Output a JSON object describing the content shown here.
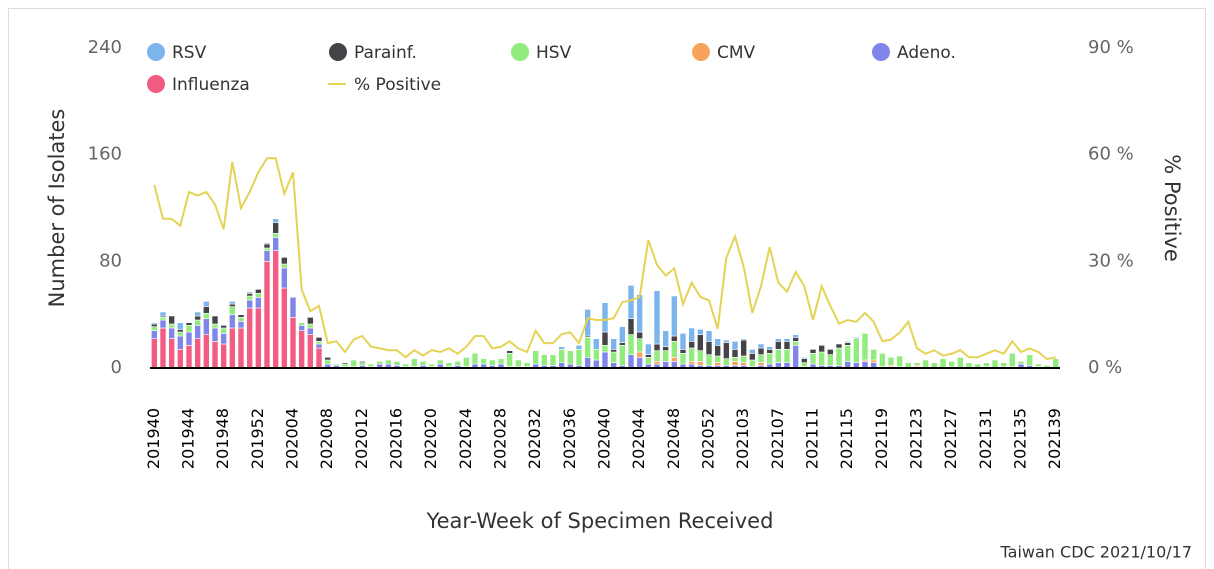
{
  "chart_data": {
    "type": "bar",
    "stacked": true,
    "y_label": "Number of Isolates",
    "y2_label": "% Positive",
    "x_label": "Year-Week of Specimen Received",
    "source": "Taiwan CDC 2021/10/17",
    "ylim": [
      0,
      240
    ],
    "yticks": [
      0,
      80,
      160,
      240
    ],
    "y2lim": [
      0,
      90
    ],
    "y2ticks": [
      {
        "value": 0,
        "label": "0 %"
      },
      {
        "value": 30,
        "label": "30 %"
      },
      {
        "value": 60,
        "label": "60 %"
      },
      {
        "value": 90,
        "label": "90 %"
      }
    ],
    "categories": [
      "201940",
      null,
      null,
      null,
      "201944",
      null,
      null,
      null,
      "201948",
      null,
      null,
      null,
      "201952",
      null,
      null,
      null,
      "202004",
      null,
      null,
      null,
      "202008",
      null,
      null,
      null,
      "202012",
      null,
      null,
      null,
      "202016",
      null,
      null,
      null,
      "202020",
      null,
      null,
      null,
      "202024",
      null,
      null,
      null,
      "202028",
      null,
      null,
      null,
      "202032",
      null,
      null,
      null,
      "202036",
      null,
      null,
      null,
      "202040",
      null,
      null,
      null,
      "202044",
      null,
      null,
      null,
      "202048",
      null,
      null,
      null,
      "202052",
      null,
      null,
      null,
      "202103",
      null,
      null,
      null,
      "202107",
      null,
      null,
      null,
      "202111",
      null,
      null,
      null,
      "202115",
      null,
      null,
      null,
      "202119",
      null,
      null,
      null,
      "202123",
      null,
      null,
      null,
      "202127",
      null,
      null,
      null,
      "202131",
      null,
      null,
      null,
      "202135",
      null,
      null,
      null,
      "202139"
    ],
    "series": [
      {
        "name": "RSV",
        "color": "#7cb5ec",
        "values": [
          1,
          3,
          0,
          5,
          0,
          3,
          4,
          0,
          0,
          2,
          0,
          1,
          0,
          1,
          3,
          0,
          0,
          0,
          0,
          0,
          0,
          0,
          0,
          0,
          0,
          0,
          0,
          0,
          0,
          0,
          0,
          0,
          0,
          0,
          0,
          0,
          0,
          0,
          0,
          0,
          0,
          0,
          0,
          0,
          0,
          0,
          0,
          2,
          0,
          3,
          20,
          8,
          22,
          8,
          12,
          25,
          28,
          8,
          40,
          12,
          30,
          12,
          10,
          4,
          8,
          5,
          2,
          6,
          1,
          3,
          3,
          2,
          2,
          2,
          2,
          1,
          0,
          0,
          0,
          0,
          1,
          1,
          0,
          0,
          0,
          0,
          0,
          0,
          0,
          0,
          0,
          0,
          0,
          0,
          0,
          0,
          0,
          0,
          0,
          0,
          0,
          0,
          0,
          0,
          0
        ]
      },
      {
        "name": "Parainf.",
        "color": "#434348",
        "values": [
          2,
          1,
          6,
          2,
          2,
          3,
          5,
          6,
          2,
          2,
          2,
          2,
          3,
          3,
          8,
          5,
          0,
          0,
          5,
          3,
          2,
          0,
          1,
          0,
          1,
          0,
          0,
          0,
          0,
          0,
          0,
          0,
          0,
          0,
          0,
          0,
          0,
          0,
          0,
          0,
          0,
          2,
          0,
          0,
          0,
          0,
          0,
          0,
          0,
          0,
          1,
          0,
          10,
          2,
          2,
          12,
          5,
          2,
          5,
          3,
          4,
          3,
          5,
          12,
          10,
          8,
          12,
          6,
          12,
          5,
          5,
          3,
          6,
          6,
          3,
          3,
          3,
          5,
          4,
          3,
          2,
          0,
          0,
          0,
          0,
          0,
          0,
          0,
          0,
          0,
          0,
          0,
          0,
          0,
          0,
          0,
          0,
          0,
          0,
          0,
          0,
          0,
          0,
          0,
          0
        ]
      },
      {
        "name": "HSV",
        "color": "#90ed7d",
        "values": [
          3,
          2,
          3,
          3,
          5,
          4,
          4,
          3,
          4,
          6,
          3,
          3,
          3,
          2,
          3,
          3,
          0,
          2,
          3,
          2,
          3,
          1,
          2,
          5,
          2,
          2,
          2,
          3,
          3,
          2,
          6,
          3,
          2,
          3,
          3,
          3,
          7,
          8,
          4,
          4,
          4,
          10,
          5,
          3,
          10,
          8,
          8,
          10,
          10,
          12,
          15,
          8,
          5,
          8,
          15,
          15,
          10,
          5,
          8,
          8,
          12,
          8,
          10,
          8,
          8,
          5,
          5,
          3,
          5,
          5,
          6,
          8,
          10,
          10,
          3,
          3,
          8,
          10,
          8,
          13,
          12,
          18,
          20,
          8,
          10,
          6,
          8,
          4,
          2,
          6,
          4,
          7,
          4,
          8,
          4,
          3,
          3,
          6,
          3,
          10,
          2,
          8,
          2,
          2,
          7
        ]
      },
      {
        "name": "CMV",
        "color": "#f7a35c",
        "values": [
          0,
          0,
          0,
          0,
          0,
          0,
          0,
          0,
          0,
          0,
          0,
          0,
          0,
          0,
          0,
          0,
          0,
          0,
          0,
          0,
          0,
          0,
          0,
          0,
          0,
          0,
          0,
          0,
          0,
          0,
          0,
          0,
          0,
          0,
          0,
          0,
          0,
          0,
          0,
          0,
          0,
          0,
          0,
          0,
          0,
          0,
          0,
          0,
          0,
          0,
          0,
          0,
          0,
          0,
          0,
          0,
          4,
          0,
          2,
          0,
          3,
          0,
          2,
          3,
          0,
          2,
          0,
          3,
          2,
          0,
          2,
          0,
          0,
          0,
          0,
          0,
          0,
          0,
          0,
          0,
          0,
          0,
          1,
          2,
          0,
          1,
          0,
          0,
          1,
          0,
          0,
          0,
          0,
          0,
          0,
          0,
          0,
          0,
          0,
          0,
          0,
          0,
          0,
          0,
          0
        ]
      },
      {
        "name": "Adeno.",
        "color": "#8085e9",
        "values": [
          6,
          6,
          8,
          10,
          10,
          10,
          12,
          10,
          8,
          10,
          5,
          6,
          8,
          8,
          10,
          15,
          15,
          4,
          5,
          3,
          3,
          2,
          1,
          1,
          2,
          1,
          3,
          3,
          2,
          1,
          1,
          2,
          1,
          3,
          1,
          2,
          1,
          3,
          3,
          2,
          3,
          1,
          1,
          1,
          3,
          2,
          2,
          4,
          3,
          2,
          8,
          6,
          12,
          4,
          2,
          10,
          8,
          3,
          3,
          5,
          5,
          3,
          3,
          2,
          2,
          2,
          2,
          2,
          2,
          1,
          2,
          3,
          4,
          4,
          17,
          1,
          3,
          2,
          2,
          2,
          5,
          4,
          5,
          4,
          1,
          1,
          1,
          0,
          1,
          0,
          0,
          0,
          1,
          0,
          0,
          0,
          1,
          0,
          1,
          1,
          3,
          2,
          1,
          0,
          0
        ]
      },
      {
        "name": "Influenza",
        "color": "#f15c80",
        "values": [
          22,
          30,
          22,
          14,
          17,
          22,
          25,
          20,
          18,
          30,
          30,
          45,
          45,
          80,
          88,
          60,
          38,
          28,
          25,
          15,
          0,
          0,
          0,
          0,
          0,
          0,
          0,
          0,
          0,
          0,
          0,
          0,
          0,
          0,
          0,
          0,
          0,
          0,
          0,
          0,
          0,
          0,
          0,
          0,
          0,
          0,
          0,
          0,
          0,
          0,
          0,
          0,
          0,
          0,
          0,
          0,
          0,
          0,
          0,
          0,
          0,
          0,
          0,
          0,
          0,
          0,
          0,
          0,
          0,
          0,
          0,
          0,
          0,
          0,
          0,
          0,
          0,
          0,
          0,
          0,
          0,
          0,
          0,
          0,
          0,
          0,
          0,
          0,
          0,
          0,
          0,
          0,
          0,
          0,
          0,
          0,
          0,
          0,
          0,
          0,
          0,
          0,
          0,
          0,
          0
        ]
      },
      {
        "name": "% Positive",
        "color": "#e4d354",
        "axis": "y2",
        "values": [
          51.5,
          42,
          42,
          40,
          49.5,
          48.5,
          49.5,
          46,
          39,
          58,
          45,
          49.5,
          55,
          59,
          59,
          49,
          55,
          22,
          16,
          17.5,
          7,
          7.5,
          4.5,
          8,
          9,
          6,
          5.5,
          5,
          5,
          3,
          5,
          3.5,
          5,
          4.5,
          5.5,
          4,
          6,
          9,
          9,
          5.5,
          6,
          7.5,
          5.5,
          4.5,
          10.5,
          7,
          7,
          9.5,
          10,
          7,
          14,
          13.5,
          13.5,
          14,
          18.5,
          19,
          20,
          36,
          29,
          26,
          28,
          18,
          24,
          20,
          19,
          11,
          31,
          37,
          28.5,
          15.5,
          23,
          34,
          24,
          21.5,
          27,
          23,
          13.5,
          23,
          17.5,
          12.5,
          13.5,
          13,
          15.5,
          13,
          7.5,
          8,
          10,
          13,
          5.5,
          4,
          5,
          3.5,
          4,
          5,
          3,
          3,
          4,
          5,
          4,
          7.5,
          4.5,
          5.5,
          4.5,
          2.5,
          3
        ]
      }
    ]
  }
}
